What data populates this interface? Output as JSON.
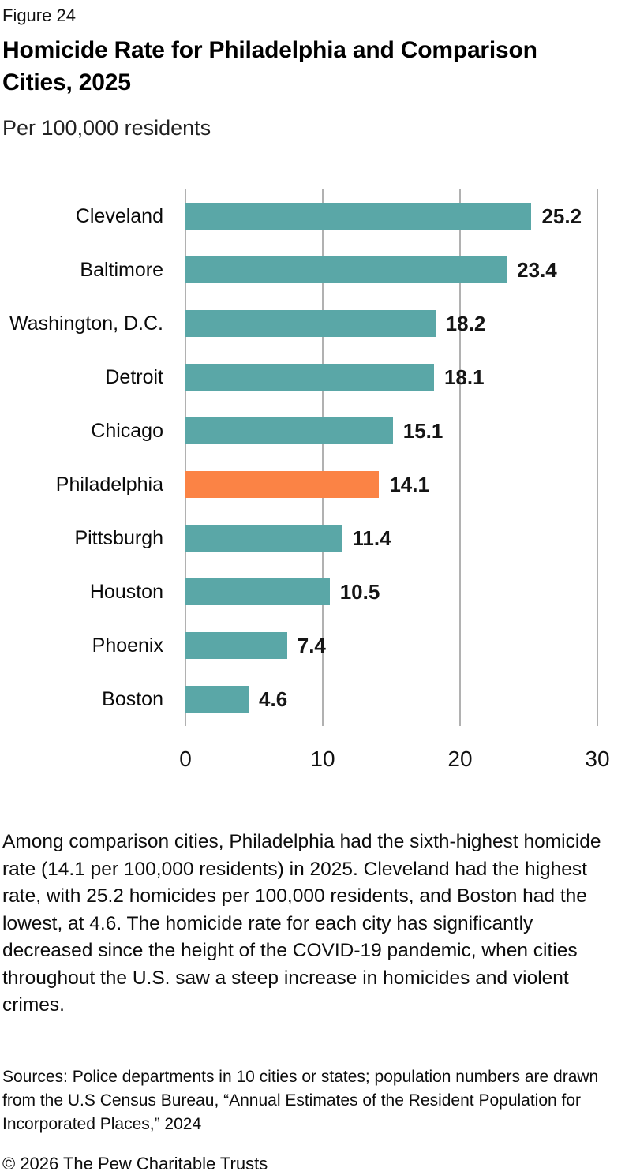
{
  "figure_label": "Figure 24",
  "title": "Homicide Rate for Philadelphia and Comparison Cities, 2025",
  "subtitle": "Per 100,000 residents",
  "chart_data": {
    "type": "bar",
    "orientation": "horizontal",
    "title": "Homicide Rate for Philadelphia and Comparison Cities, 2025",
    "xlabel": "Per 100,000 residents",
    "ylabel": "",
    "categories": [
      "Cleveland",
      "Baltimore",
      "Washington, D.C.",
      "Detroit",
      "Chicago",
      "Philadelphia",
      "Pittsburgh",
      "Houston",
      "Phoenix",
      "Boston"
    ],
    "values": [
      25.2,
      23.4,
      18.2,
      18.1,
      15.1,
      14.1,
      11.4,
      10.5,
      7.4,
      4.6
    ],
    "value_labels": [
      "25.2",
      "23.4",
      "18.2",
      "18.1",
      "15.1",
      "14.1",
      "11.4",
      "10.5",
      "7.4",
      "4.6"
    ],
    "highlight_category": "Philadelphia",
    "highlight_index": 5,
    "bar_color": "#5AA7A7",
    "highlight_color": "#FB8345",
    "gridline_color": "#B1B1B1",
    "xlim": [
      0,
      30
    ],
    "x_ticks": [
      "0",
      "10",
      "20",
      "30"
    ],
    "grid": true,
    "legend": false
  },
  "caption": "Among comparison cities, Philadelphia had the sixth-highest homicide rate (14.1 per 100,000 residents) in 2025. Cleveland had the highest rate, with 25.2 homicides per 100,000 residents, and Boston had the lowest, at 4.6. The homicide rate for each city has significantly decreased since the height of the COVID-19 pandemic, when cities throughout the U.S. saw a steep increase in homicides and violent crimes.",
  "sources": "Sources: Police departments in 10 cities or states; population numbers are drawn from the U.S Census Bureau, “Annual Estimates of the Resident Population for Incorporated Places,” 2024",
  "copyright": "© 2026 The Pew Charitable Trusts"
}
